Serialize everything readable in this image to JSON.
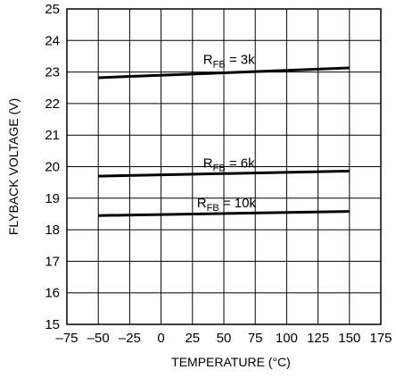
{
  "chart_data": {
    "type": "line",
    "title": "",
    "xlabel": "TEMPERATURE (°C)",
    "ylabel": "FLYBACK VOLTAGE (V)",
    "xlim": [
      -75,
      175
    ],
    "ylim": [
      15,
      25
    ],
    "x_ticks": [
      -75,
      -50,
      -25,
      0,
      25,
      50,
      75,
      100,
      125,
      150,
      175
    ],
    "x_tick_labels": [
      "–75",
      "–50",
      "–25",
      "0",
      "25",
      "50",
      "75",
      "100",
      "125",
      "150",
      "175"
    ],
    "y_ticks": [
      15,
      16,
      17,
      18,
      19,
      20,
      21,
      22,
      23,
      24,
      25
    ],
    "y_tick_labels": [
      "15",
      "16",
      "17",
      "18",
      "19",
      "20",
      "21",
      "22",
      "23",
      "24",
      "25"
    ],
    "grid": true,
    "legend": "none",
    "series": [
      {
        "name_main": "R",
        "name_sub": "FB",
        "name_value": " = 3k",
        "x": [
          -50,
          150
        ],
        "y": [
          22.82,
          23.13
        ],
        "label_at": [
          25,
          23.2
        ]
      },
      {
        "name_main": "R",
        "name_sub": "FB",
        "name_value": " = 6k",
        "x": [
          -50,
          150
        ],
        "y": [
          19.7,
          19.86
        ],
        "label_at": [
          25,
          19.92
        ]
      },
      {
        "name_main": "R",
        "name_sub": "FB",
        "name_value": " = 10k",
        "x": [
          -50,
          150
        ],
        "y": [
          18.45,
          18.58
        ],
        "label_at": [
          20,
          18.65
        ]
      }
    ]
  }
}
